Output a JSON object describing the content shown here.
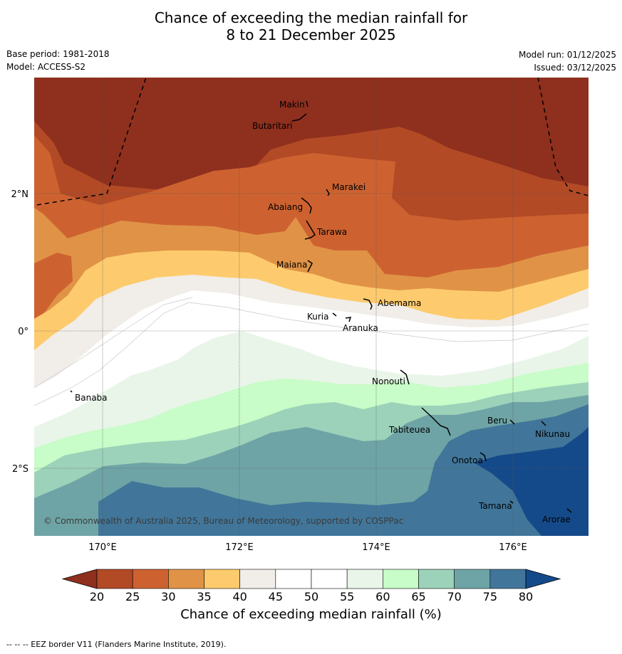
{
  "header": {
    "title_line1": "Chance of exceeding the median rainfall for",
    "title_line2": "8 to 21 December 2025",
    "base_period": "Base period: 1981-2018",
    "model": "Model: ACCESS-S2",
    "model_run": "Model run: 01/12/2025",
    "issued": "Issued: 03/12/2025"
  },
  "map": {
    "copyright": "© Commonwealth of Australia 2025, Bureau of Meteorology, supported by COSPPac",
    "lat_labels": [
      "2°N",
      "0°",
      "2°S"
    ],
    "lon_labels": [
      "170°E",
      "172°E",
      "174°E",
      "176°E"
    ],
    "places": [
      "Makin",
      "Butaritari",
      "Marakei",
      "Abaiang",
      "Tarawa",
      "Maiana",
      "Abemama",
      "Kuria",
      "Aranuka",
      "Nonouti",
      "Banaba",
      "Beru",
      "Nikunau",
      "Tabiteuea",
      "Onotoa",
      "Tamana",
      "Arorae"
    ]
  },
  "colorbar": {
    "ticks": [
      "20",
      "25",
      "30",
      "35",
      "40",
      "45",
      "50",
      "55",
      "60",
      "65",
      "70",
      "75",
      "80"
    ],
    "colors": [
      "#8f2f1e",
      "#b24a26",
      "#cd6230",
      "#e09346",
      "#fdcb6e",
      "#f1ede8",
      "#ffffff",
      "#ffffff",
      "#e9f5e9",
      "#c8fcc8",
      "#9cd2b9",
      "#6fa4a6",
      "#41769a",
      "#154a8a"
    ],
    "label": "Chance of exceeding median rainfall (%)"
  },
  "footer": {
    "eez_note": "--  --  -- EEZ border V11 (Flanders Marine Institute, 2019)."
  }
}
